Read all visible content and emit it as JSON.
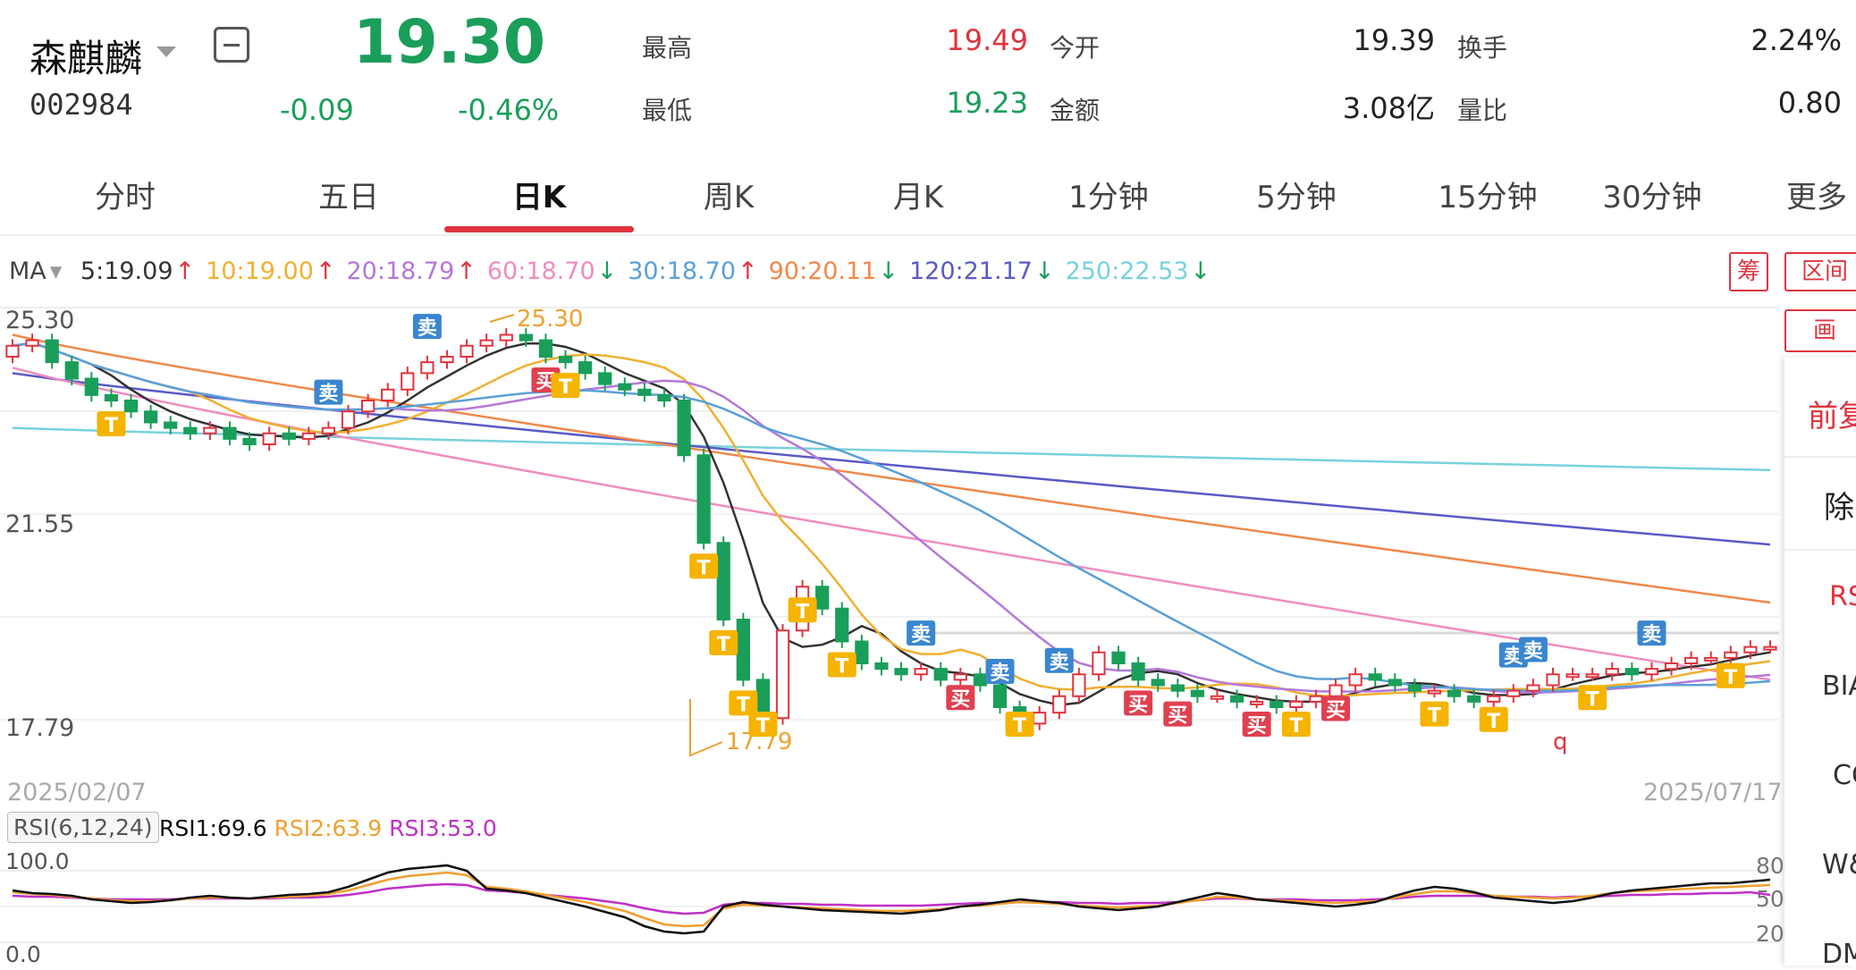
{
  "header": {
    "name": "森麒麟",
    "code": "002984",
    "price": "19.30",
    "change": "-0.09",
    "change_pct": "-0.46%",
    "stats": [
      {
        "label": "最高",
        "value": "19.49",
        "color": "red"
      },
      {
        "label": "今开",
        "value": "19.39",
        "color": "black"
      },
      {
        "label": "换手",
        "value": "2.24%",
        "color": "black"
      },
      {
        "label": "最低",
        "value": "19.23",
        "color": "green"
      },
      {
        "label": "金额",
        "value": "3.08亿",
        "color": "black"
      },
      {
        "label": "量比",
        "value": "0.80",
        "color": "black"
      }
    ]
  },
  "tabs": [
    "分时",
    "五日",
    "日K",
    "周K",
    "月K",
    "1分钟",
    "5分钟",
    "15分钟",
    "30分钟",
    "更多"
  ],
  "active_tab": "日K",
  "ma_legend": {
    "label": "MA",
    "items": [
      {
        "text": "5:19.09",
        "arrow": "↑",
        "color": "#333333"
      },
      {
        "text": "10:19.00",
        "arrow": "↑",
        "color": "#f0b030"
      },
      {
        "text": "20:18.79",
        "arrow": "↑",
        "color": "#b478d8"
      },
      {
        "text": "60:18.70",
        "arrow": "↓",
        "color": "#f08cc0"
      },
      {
        "text": "30:18.70",
        "arrow": "↑",
        "color": "#5aa0d8"
      },
      {
        "text": "90:20.11",
        "arrow": "↓",
        "color": "#f0884a"
      },
      {
        "text": "120:21.17",
        "arrow": "↓",
        "color": "#5a5ac8"
      },
      {
        "text": "250:22.53",
        "arrow": "↓",
        "color": "#78d2dc"
      }
    ]
  },
  "side": {
    "chip_button": "筹",
    "range_button": "区间",
    "draw_button": "画",
    "items": [
      "前复",
      "除",
      "RS",
      "BIA",
      "CC",
      "W&",
      "DM"
    ]
  },
  "chart_data": {
    "type": "candlestick",
    "y_labels": [
      "25.30",
      "21.55",
      "17.79"
    ],
    "ylim": [
      17.79,
      25.3
    ],
    "x_start": "2025/02/07",
    "x_end": "2025/07/17",
    "high_annotation": "25.30",
    "low_annotation": "17.79",
    "markers": {
      "buy": "买",
      "sell": "卖",
      "t": "T"
    },
    "stray_mark": "q",
    "candles_o": [
      24.6,
      24.8,
      24.9,
      24.5,
      24.2,
      23.9,
      23.8,
      23.6,
      23.4,
      23.3,
      23.2,
      23.3,
      23.1,
      23.0,
      23.2,
      23.1,
      23.2,
      23.3,
      23.6,
      23.8,
      24.0,
      24.3,
      24.5,
      24.6,
      24.8,
      24.9,
      25.0,
      24.9,
      24.6,
      24.5,
      24.3,
      24.1,
      24.0,
      23.9,
      23.8,
      22.8,
      21.2,
      19.8,
      18.7,
      18.0,
      19.6,
      20.4,
      20.0,
      19.4,
      19.0,
      18.9,
      18.8,
      18.9,
      18.7,
      18.8,
      18.6,
      18.2,
      17.9,
      18.1,
      18.4,
      18.8,
      19.2,
      19.0,
      18.7,
      18.6,
      18.5,
      18.4,
      18.4,
      18.3,
      18.3,
      18.2,
      18.3,
      18.4,
      18.6,
      18.8,
      18.7,
      18.6,
      18.5,
      18.5,
      18.4,
      18.3,
      18.4,
      18.5,
      18.6,
      18.8,
      18.8,
      18.8,
      18.9,
      18.8,
      18.9,
      19.0,
      19.1,
      19.1,
      19.2,
      19.3
    ],
    "candles_c": [
      24.8,
      24.9,
      24.5,
      24.2,
      23.9,
      23.8,
      23.6,
      23.4,
      23.3,
      23.2,
      23.3,
      23.1,
      23.0,
      23.2,
      23.1,
      23.2,
      23.3,
      23.6,
      23.8,
      24.0,
      24.3,
      24.5,
      24.6,
      24.8,
      24.9,
      25.0,
      24.9,
      24.6,
      24.5,
      24.3,
      24.1,
      24.0,
      23.9,
      23.8,
      22.8,
      21.2,
      19.8,
      18.7,
      18.0,
      19.6,
      20.4,
      20.0,
      19.4,
      19.0,
      18.9,
      18.8,
      18.9,
      18.7,
      18.8,
      18.6,
      18.2,
      17.9,
      18.1,
      18.4,
      18.8,
      19.2,
      19.0,
      18.7,
      18.6,
      18.5,
      18.4,
      18.4,
      18.3,
      18.3,
      18.2,
      18.3,
      18.4,
      18.6,
      18.8,
      18.7,
      18.6,
      18.5,
      18.5,
      18.4,
      18.3,
      18.4,
      18.5,
      18.6,
      18.8,
      18.8,
      18.8,
      18.9,
      18.8,
      18.9,
      19.0,
      19.1,
      19.1,
      19.2,
      19.3,
      19.3
    ],
    "ma_series": [
      {
        "period": "250",
        "color": "#78d2dc",
        "start": 23.3,
        "end": 22.53
      },
      {
        "period": "120",
        "color": "#5a5ac8",
        "start": 24.3,
        "end": 21.17
      },
      {
        "period": "90",
        "color": "#f0884a",
        "start": 25.0,
        "end": 20.11
      },
      {
        "period": "60",
        "color": "#f08cc0",
        "start": 24.4,
        "end": 18.7
      }
    ]
  },
  "rsi": {
    "label": "RSI(6,12,24)",
    "rsi1": "RSI1:69.6",
    "rsi2": "RSI2:63.9",
    "rsi3": "RSI3:53.0",
    "y_top": "100.0",
    "y_bottom": "0.0",
    "right_labels": [
      "80",
      "50",
      "20"
    ],
    "rsi1_color": "#111111",
    "rsi2_color": "#f0a030",
    "rsi3_color": "#c030c8",
    "rsi1_values": [
      58,
      55,
      54,
      52,
      48,
      46,
      44,
      45,
      47,
      50,
      52,
      50,
      49,
      51,
      53,
      54,
      56,
      62,
      70,
      78,
      82,
      84,
      86,
      80,
      60,
      58,
      55,
      50,
      45,
      40,
      34,
      28,
      18,
      12,
      10,
      12,
      40,
      45,
      42,
      40,
      38,
      36,
      35,
      34,
      33,
      32,
      34,
      36,
      40,
      42,
      45,
      48,
      46,
      44,
      40,
      38,
      36,
      38,
      40,
      45,
      50,
      55,
      52,
      48,
      46,
      44,
      42,
      40,
      42,
      45,
      52,
      58,
      62,
      60,
      56,
      50,
      48,
      46,
      44,
      46,
      50,
      55,
      58,
      60,
      62,
      64,
      66,
      66,
      68,
      70
    ],
    "rsi2_values": [
      56,
      54,
      53,
      51,
      49,
      47,
      46,
      46,
      47,
      49,
      50,
      50,
      49,
      50,
      51,
      52,
      54,
      58,
      64,
      70,
      74,
      76,
      78,
      75,
      62,
      60,
      57,
      53,
      49,
      45,
      40,
      35,
      27,
      20,
      18,
      19,
      38,
      42,
      41,
      40,
      39,
      38,
      37,
      36,
      35,
      35,
      36,
      37,
      40,
      41,
      43,
      45,
      44,
      43,
      41,
      40,
      39,
      40,
      41,
      44,
      47,
      51,
      50,
      48,
      47,
      46,
      45,
      44,
      45,
      46,
      50,
      54,
      57,
      57,
      55,
      52,
      51,
      50,
      49,
      50,
      52,
      55,
      57,
      58,
      59,
      60,
      61,
      62,
      63,
      64
    ],
    "rsi3_values": [
      52,
      51,
      51,
      50,
      49,
      48,
      48,
      48,
      48,
      49,
      49,
      49,
      49,
      49,
      50,
      50,
      51,
      53,
      56,
      60,
      62,
      64,
      65,
      64,
      58,
      57,
      55,
      53,
      51,
      49,
      46,
      43,
      38,
      34,
      32,
      33,
      42,
      44,
      44,
      43,
      43,
      42,
      42,
      41,
      41,
      41,
      41,
      42,
      43,
      44,
      44,
      45,
      45,
      45,
      44,
      44,
      43,
      44,
      44,
      45,
      47,
      49,
      49,
      48,
      48,
      48,
      47,
      47,
      47,
      48,
      49,
      51,
      52,
      52,
      52,
      51,
      51,
      51,
      50,
      51,
      51,
      52,
      53,
      53,
      54,
      54,
      55,
      55,
      56,
      53
    ]
  }
}
